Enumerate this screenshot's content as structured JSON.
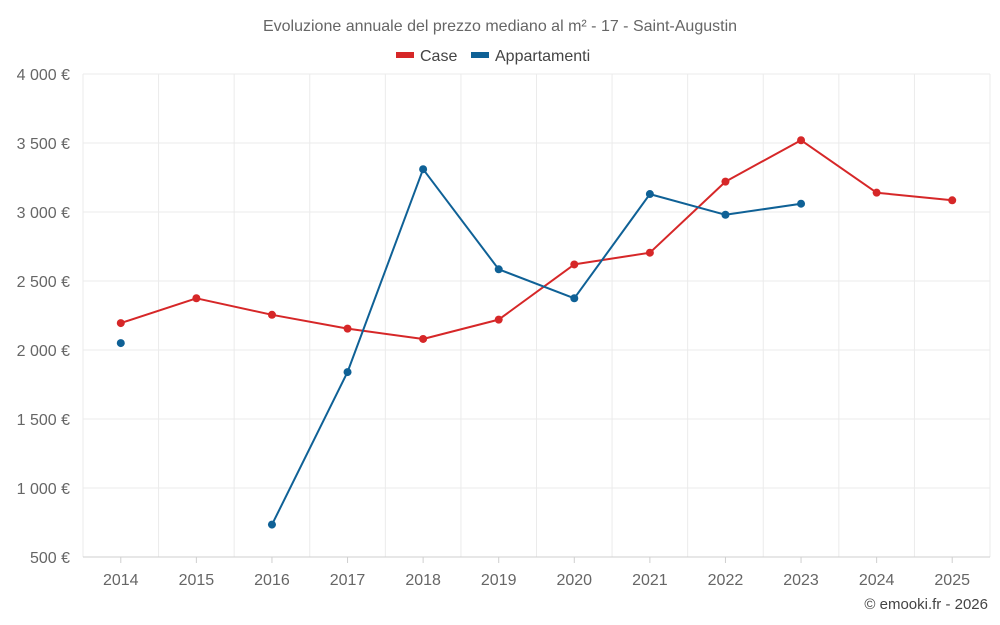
{
  "chart_data": {
    "type": "line",
    "title": "Evoluzione annuale del prezzo mediano al m² - 17 - Saint-Augustin",
    "categories": [
      "2014",
      "2015",
      "2016",
      "2017",
      "2018",
      "2019",
      "2020",
      "2021",
      "2022",
      "2023",
      "2024",
      "2025"
    ],
    "ylim": [
      500,
      4000
    ],
    "yticks": [
      500,
      1000,
      1500,
      2000,
      2500,
      3000,
      3500,
      4000
    ],
    "ytick_labels": [
      "500 €",
      "1 000 €",
      "1 500 €",
      "2 000 €",
      "2 500 €",
      "3 000 €",
      "3 500 €",
      "4 000 €"
    ],
    "grid": true,
    "legend_position": "top-center",
    "series": [
      {
        "name": "Case",
        "color": "#d62728",
        "values": [
          2195,
          2375,
          2255,
          2155,
          2080,
          2220,
          2620,
          2705,
          3220,
          3520,
          3140,
          3085
        ]
      },
      {
        "name": "Appartamenti",
        "color": "#0f6196",
        "values": [
          2050,
          null,
          735,
          1840,
          3310,
          2585,
          2375,
          3130,
          2980,
          3060,
          null,
          null
        ]
      }
    ],
    "credit": "© emooki.fr - 2026"
  }
}
